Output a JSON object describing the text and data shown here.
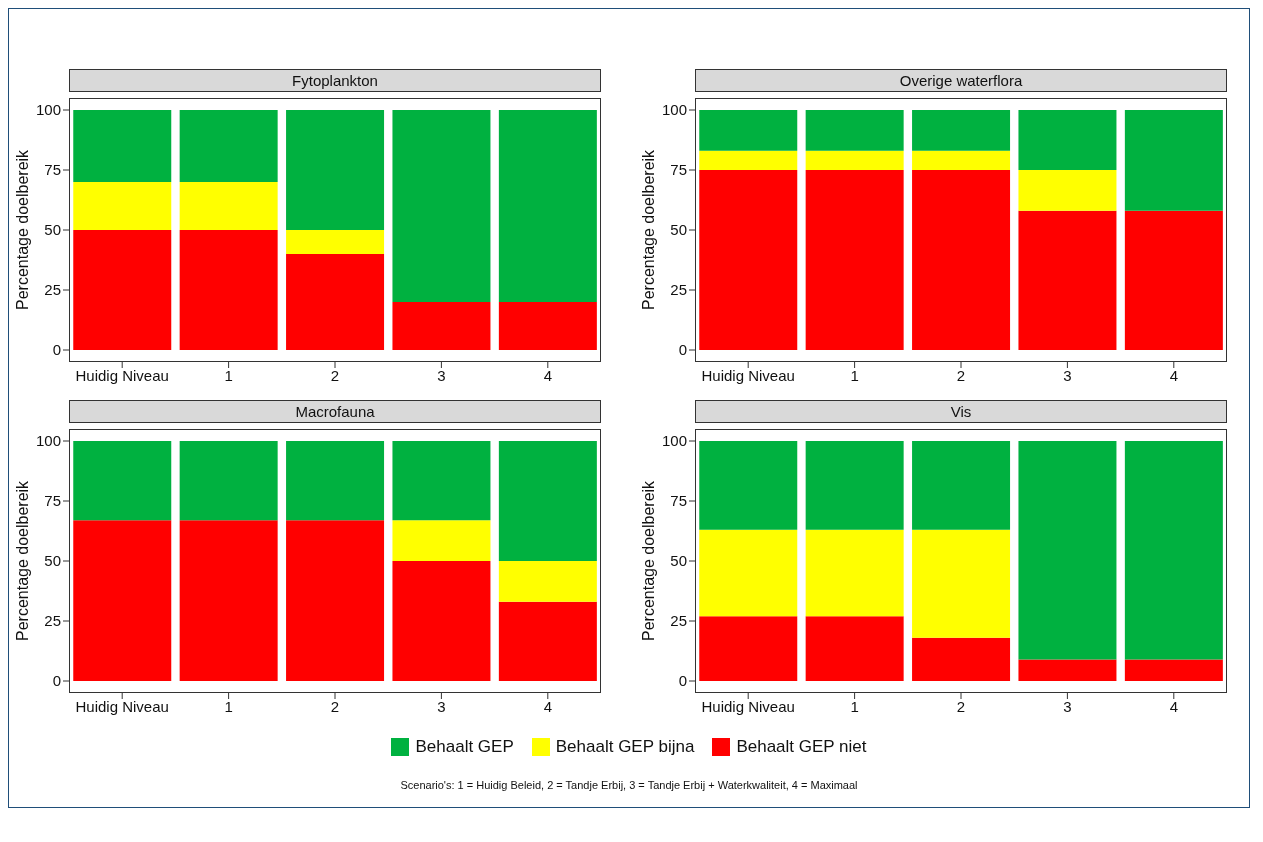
{
  "chart_data": [
    {
      "type": "bar",
      "title": "Fytoplankton",
      "ylabel": "Percentage doelbereik",
      "stacked": true,
      "categories": [
        "Huidig Niveau",
        "1",
        "2",
        "3",
        "4"
      ],
      "ylim": [
        -5,
        105
      ],
      "yticks": [
        0,
        25,
        50,
        75,
        100
      ],
      "legend": "bottom",
      "series": [
        {
          "name": "Behaalt GEP niet",
          "color": "#ff0000",
          "values": [
            50,
            50,
            40,
            20,
            20
          ]
        },
        {
          "name": "Behaalt GEP bijna",
          "color": "#ffff00",
          "values": [
            20,
            20,
            10,
            0,
            0
          ]
        },
        {
          "name": "Behaalt GEP",
          "color": "#00b140",
          "values": [
            30,
            30,
            50,
            80,
            80
          ]
        }
      ]
    },
    {
      "type": "bar",
      "title": "Overige waterflora",
      "ylabel": "Percentage doelbereik",
      "stacked": true,
      "categories": [
        "Huidig Niveau",
        "1",
        "2",
        "3",
        "4"
      ],
      "ylim": [
        -5,
        105
      ],
      "yticks": [
        0,
        25,
        50,
        75,
        100
      ],
      "series": [
        {
          "color": "#ff0000",
          "values": [
            75,
            75,
            75,
            58,
            58
          ]
        },
        {
          "color": "#ffff00",
          "values": [
            8,
            8,
            8,
            17,
            0
          ]
        },
        {
          "color": "#00b140",
          "values": [
            17,
            17,
            17,
            25,
            42
          ]
        }
      ]
    },
    {
      "type": "bar",
      "title": "Macrofauna",
      "ylabel": "Percentage doelbereik",
      "stacked": true,
      "categories": [
        "Huidig Niveau",
        "1",
        "2",
        "3",
        "4"
      ],
      "ylim": [
        -5,
        105
      ],
      "yticks": [
        0,
        25,
        50,
        75,
        100
      ],
      "series": [
        {
          "color": "#ff0000",
          "values": [
            67,
            67,
            67,
            50,
            33
          ]
        },
        {
          "color": "#ffff00",
          "values": [
            0,
            0,
            0,
            17,
            17
          ]
        },
        {
          "color": "#00b140",
          "values": [
            33,
            33,
            33,
            33,
            50
          ]
        }
      ]
    },
    {
      "type": "bar",
      "title": "Vis",
      "ylabel": "Percentage doelbereik",
      "stacked": true,
      "categories": [
        "Huidig Niveau",
        "1",
        "2",
        "3",
        "4"
      ],
      "ylim": [
        -5,
        105
      ],
      "yticks": [
        0,
        25,
        50,
        75,
        100
      ],
      "annotations": [
        "Scenario's: 1 = Huidig Beleid, 2 = Tandje Erbij, 3 = Tandje Erbij + Waterkwaliteit, 4 = Maximaal"
      ],
      "series": [
        {
          "color": "#ff0000",
          "values": [
            27,
            27,
            18,
            9,
            9
          ]
        },
        {
          "color": "#ffff00",
          "values": [
            36,
            36,
            45,
            0,
            0
          ]
        },
        {
          "color": "#00b140",
          "values": [
            37,
            37,
            37,
            91,
            91
          ]
        }
      ]
    }
  ]
}
